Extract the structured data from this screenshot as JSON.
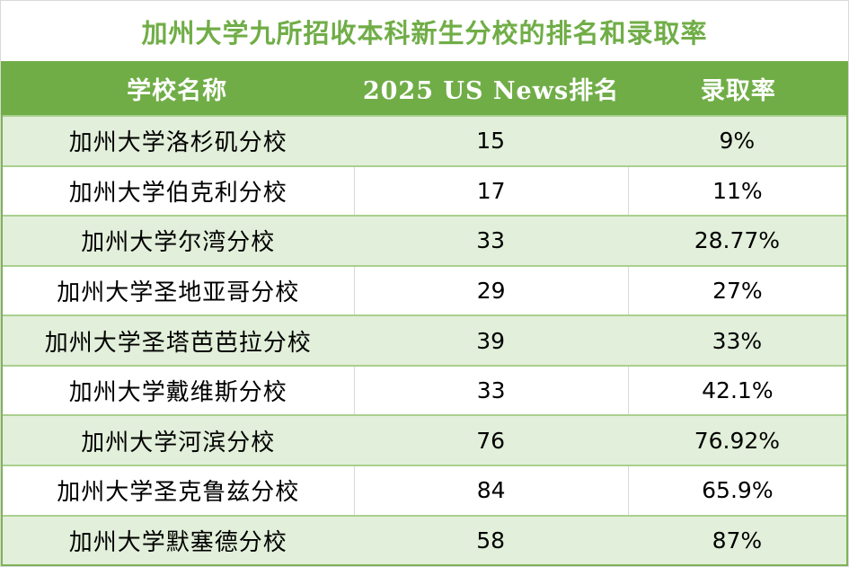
{
  "title": "加州大学九所招收本科新生分校的排名和录取率",
  "table": {
    "headers": [
      "学校名称",
      "2025 US News排名",
      "录取率"
    ],
    "rows": [
      {
        "school": "加州大学洛杉矶分校",
        "rank": "15",
        "rate": "9%"
      },
      {
        "school": "加州大学伯克利分校",
        "rank": "17",
        "rate": "11%"
      },
      {
        "school": "加州大学尔湾分校",
        "rank": "33",
        "rate": "28.77%"
      },
      {
        "school": "加州大学圣地亚哥分校",
        "rank": "29",
        "rate": "27%"
      },
      {
        "school": "加州大学圣塔芭芭拉分校",
        "rank": "39",
        "rate": "33%"
      },
      {
        "school": "加州大学戴维斯分校",
        "rank": "33",
        "rate": "42.1%"
      },
      {
        "school": "加州大学河滨分校",
        "rank": "76",
        "rate": "76.92%"
      },
      {
        "school": "加州大学圣克鲁兹分校",
        "rank": "84",
        "rate": "65.9%"
      },
      {
        "school": "加州大学默塞德分校",
        "rank": "58",
        "rate": "87%"
      }
    ]
  },
  "colors": {
    "title_text": "#70ad47",
    "header_background": "#70ad47",
    "header_text": "#ffffff",
    "banded_row_background": "#e2efda",
    "plain_row_background": "#ffffff",
    "row_separator": "#a9d08e",
    "table_border": "#7fb257",
    "column_rule": "#d9d9d9",
    "body_text": "#000000"
  }
}
